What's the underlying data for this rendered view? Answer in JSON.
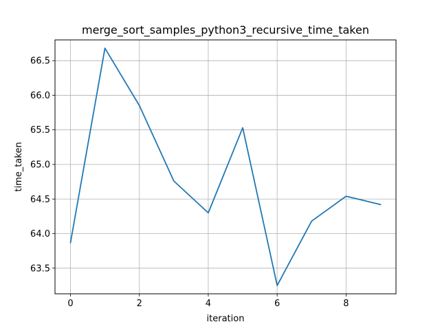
{
  "chart_data": {
    "type": "line",
    "title": "merge_sort_samples_python3_recursive_time_taken",
    "xlabel": "iteration",
    "ylabel": "time_taken",
    "x": [
      0,
      1,
      2,
      3,
      4,
      5,
      6,
      7,
      8,
      9
    ],
    "series": [
      {
        "values": [
          63.87,
          66.68,
          65.85,
          64.76,
          64.3,
          65.53,
          63.25,
          64.18,
          64.54,
          64.42
        ],
        "color": "#1f77b4"
      }
    ],
    "xlim": [
      -0.45,
      9.45
    ],
    "ylim": [
      63.13,
      66.8
    ],
    "xticks": [
      0,
      2,
      4,
      6,
      8
    ],
    "xtick_labels": [
      "0",
      "2",
      "4",
      "6",
      "8"
    ],
    "yticks": [
      63.5,
      64.0,
      64.5,
      65.0,
      65.5,
      66.0,
      66.5
    ],
    "ytick_labels": [
      "63.5",
      "64.0",
      "64.5",
      "65.0",
      "65.5",
      "66.0",
      "66.5"
    ],
    "grid": true,
    "legend": "none"
  }
}
